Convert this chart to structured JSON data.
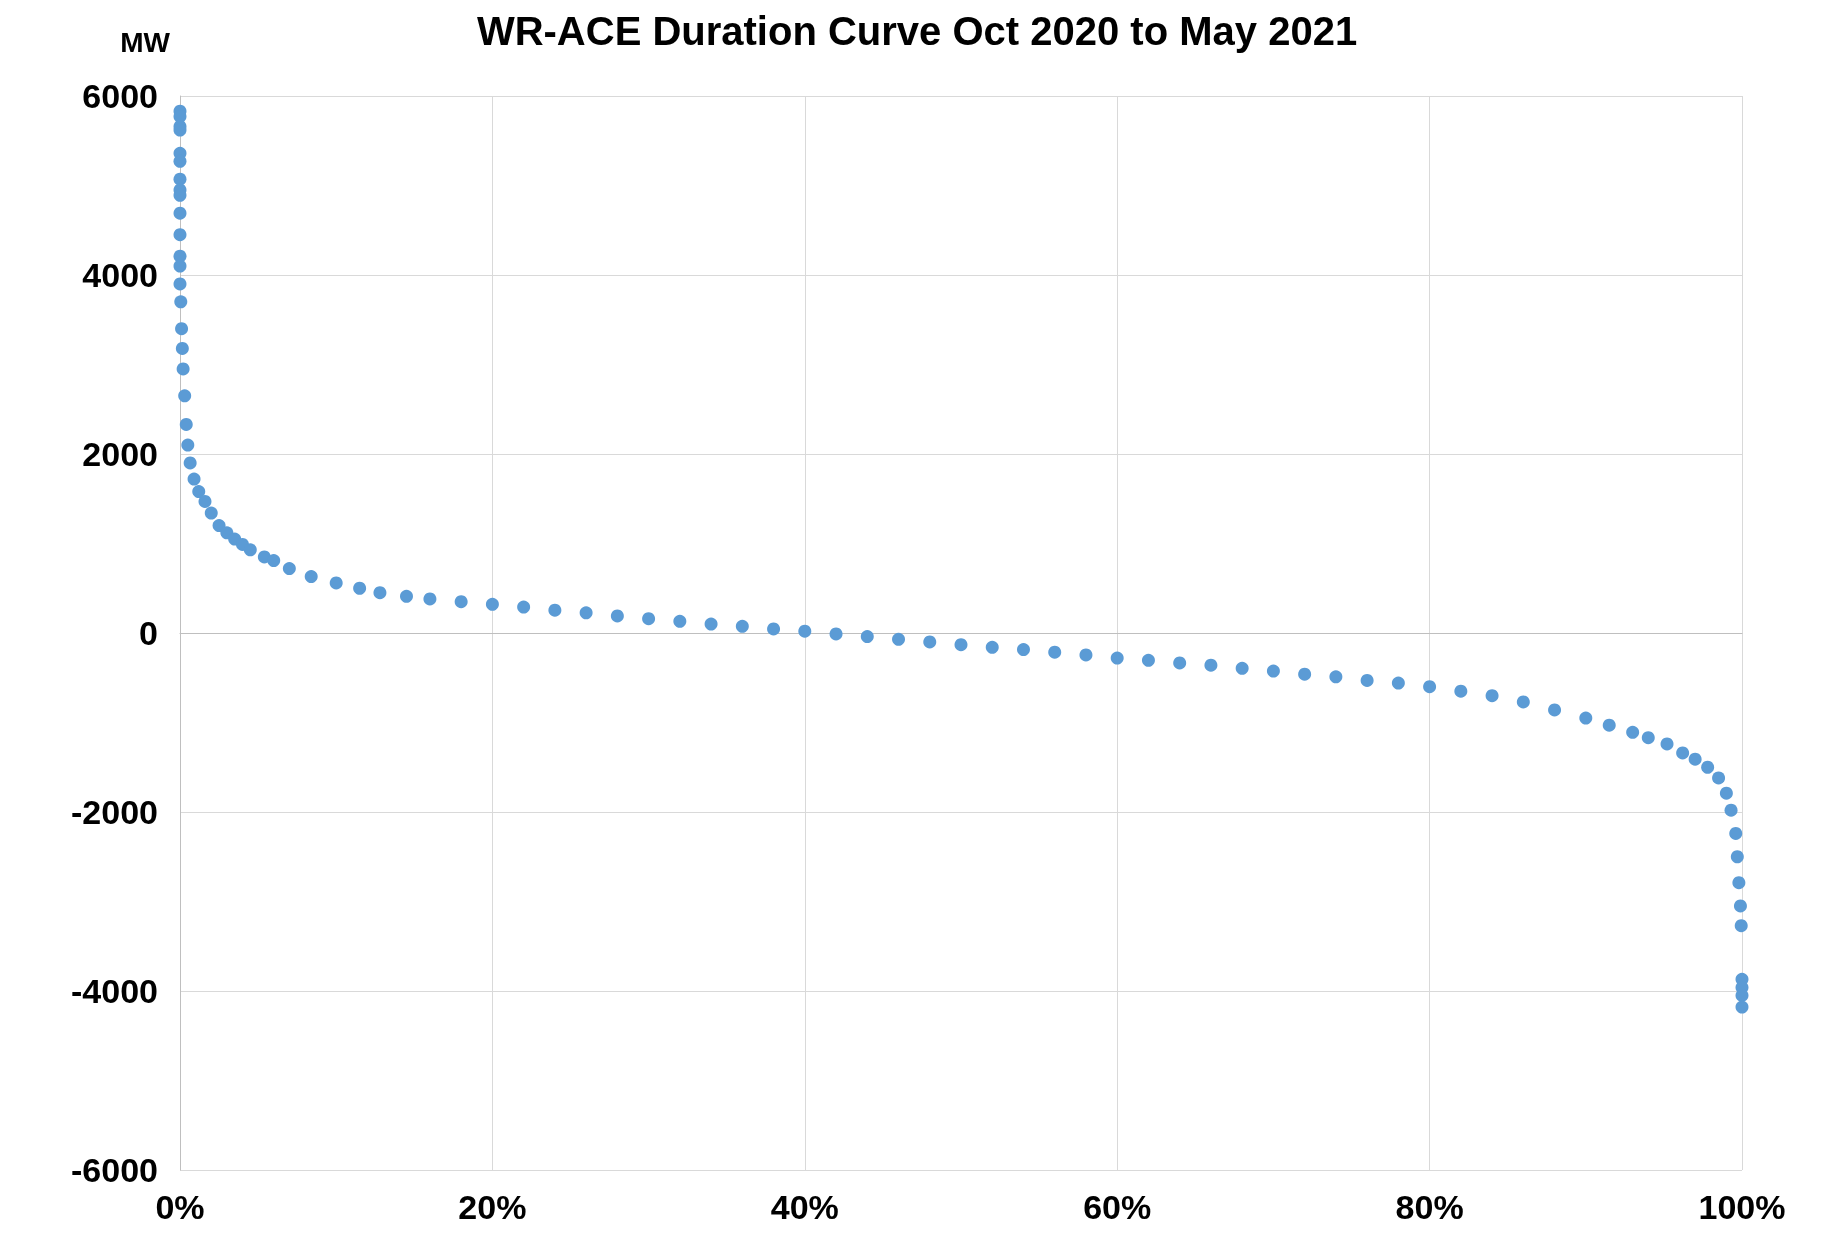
{
  "chart_data": {
    "type": "scatter",
    "title": "WR-ACE Duration Curve Oct 2020 to May 2021",
    "ylabel": "MW",
    "xlim": [
      0,
      100
    ],
    "xticks": [
      {
        "value": 0,
        "label": "0%"
      },
      {
        "value": 20,
        "label": "20%"
      },
      {
        "value": 40,
        "label": "40%"
      },
      {
        "value": 60,
        "label": "60%"
      },
      {
        "value": 80,
        "label": "80%"
      },
      {
        "value": 100,
        "label": "100%"
      }
    ],
    "ylim": [
      -6000,
      6000
    ],
    "yticks": [
      -6000,
      -4000,
      -2000,
      0,
      2000,
      4000,
      6000
    ],
    "grid": true,
    "marker": "circle",
    "series": [
      {
        "color": "#5b9bd5",
        "x": [
          0,
          0,
          0,
          0,
          0,
          0,
          0,
          0,
          0,
          0,
          0,
          0,
          0,
          0,
          0.05,
          0.1,
          0.15,
          0.2,
          0.3,
          0.4,
          0.5,
          0.65,
          0.9,
          1.2,
          1.6,
          2,
          2.5,
          3,
          3.5,
          4,
          4.5,
          5.4,
          6,
          7,
          8.4,
          10,
          11.5,
          12.8,
          14.5,
          16,
          18,
          20,
          22,
          24,
          26,
          28,
          30,
          32,
          34,
          36,
          38,
          40,
          42,
          44,
          46,
          48,
          50,
          52,
          54,
          56,
          58,
          60,
          62,
          64,
          66,
          68,
          70,
          72,
          74,
          76,
          78,
          80,
          82,
          84,
          86,
          88,
          90,
          91.5,
          93,
          94,
          95.2,
          96.2,
          97,
          97.8,
          98.5,
          99,
          99.3,
          99.6,
          99.7,
          99.8,
          99.9,
          99.95,
          100,
          100,
          100,
          100
        ],
        "values": [
          5830,
          5770,
          5660,
          5620,
          5360,
          5270,
          5070,
          4950,
          4890,
          4690,
          4450,
          4210,
          4100,
          3900,
          3700,
          3400,
          3180,
          2950,
          2650,
          2330,
          2100,
          1900,
          1720,
          1580,
          1470,
          1340,
          1200,
          1120,
          1050,
          990,
          930,
          850,
          810,
          720,
          630,
          560,
          500,
          450,
          410,
          380,
          350,
          320,
          290,
          255,
          225,
          190,
          160,
          130,
          100,
          75,
          45,
          20,
          -10,
          -40,
          -70,
          -100,
          -130,
          -160,
          -185,
          -215,
          -245,
          -280,
          -305,
          -335,
          -360,
          -395,
          -425,
          -460,
          -490,
          -530,
          -560,
          -600,
          -650,
          -700,
          -770,
          -860,
          -950,
          -1030,
          -1110,
          -1170,
          -1240,
          -1340,
          -1410,
          -1500,
          -1620,
          -1790,
          -1980,
          -2240,
          -2500,
          -2790,
          -3050,
          -3270,
          -3870,
          -3960,
          -4050,
          -4180
        ]
      }
    ]
  }
}
